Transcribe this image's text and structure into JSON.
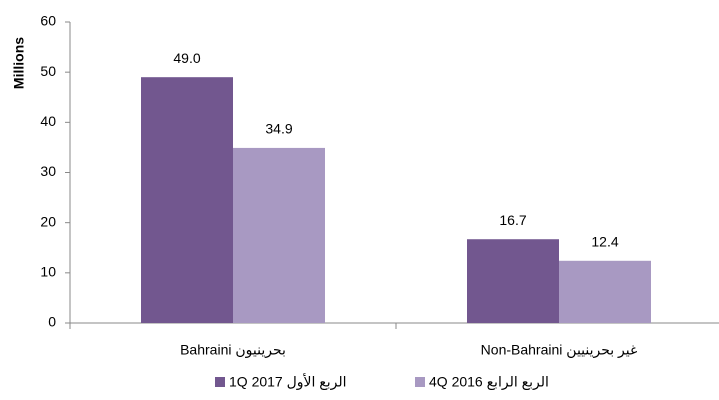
{
  "chart_data": {
    "type": "bar",
    "y_label": "Millions",
    "categories": [
      "Bahraini بحرينيون",
      "Non-Bahraini غير بحرينيين"
    ],
    "series": [
      {
        "name": "1Q 2017 الربع الأول",
        "color": "#72578f",
        "values": [
          49.0,
          16.7
        ],
        "value_labels": [
          "49.0",
          "16.7"
        ]
      },
      {
        "name": "4Q 2016 الربع الرابع",
        "color": "#a899c2",
        "values": [
          34.9,
          12.4
        ],
        "value_labels": [
          "34.9",
          "12.4"
        ]
      }
    ],
    "ylim": [
      0,
      60
    ],
    "yticks": [
      0,
      10,
      20,
      30,
      40,
      50,
      60
    ],
    "grid": false,
    "legend": "bottom"
  }
}
